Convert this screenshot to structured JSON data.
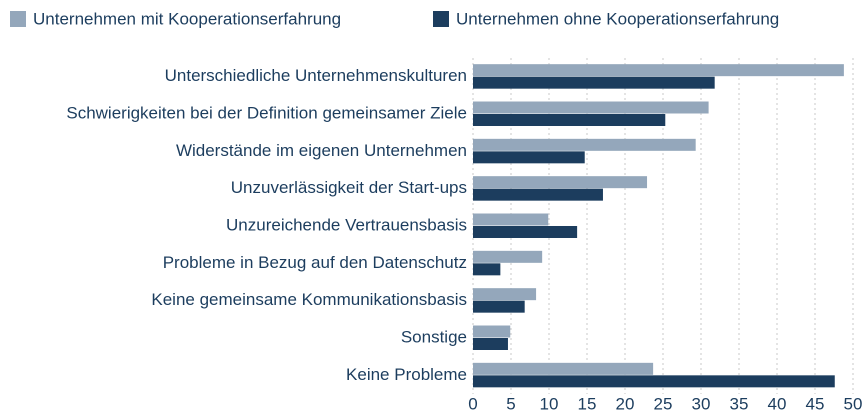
{
  "chart_data": {
    "type": "bar",
    "categories": [
      "Unterschiedliche Unternehmenskulturen",
      "Schwierigkeiten bei der Definition gemeinsamer Ziele",
      "Widerstände im eigenen Unternehmen",
      "Unzuverlässigkeit der Start-ups",
      "Unzureichende Vertrauensbasis",
      "Probleme in Bezug auf den Datenschutz",
      "Keine gemeinsame Kommunikationsbasis",
      "Sonstige",
      "Keine Probleme"
    ],
    "series": [
      {
        "name": "Unternehmen mit Kooperationserfahrung",
        "color": "#94a7bb",
        "values": [
          48.8,
          31.0,
          29.3,
          22.9,
          9.9,
          9.1,
          8.3,
          4.9,
          23.7
        ]
      },
      {
        "name": "Unternehmen ohne Kooperationserfahrung",
        "color": "#1c3d5e",
        "values": [
          31.8,
          25.3,
          14.7,
          17.1,
          13.7,
          3.6,
          6.8,
          4.6,
          47.6
        ]
      }
    ],
    "xlim": [
      0,
      50
    ],
    "xticks": [
      0,
      5,
      10,
      15,
      20,
      25,
      30,
      35,
      40,
      45,
      50
    ],
    "grid": true
  }
}
